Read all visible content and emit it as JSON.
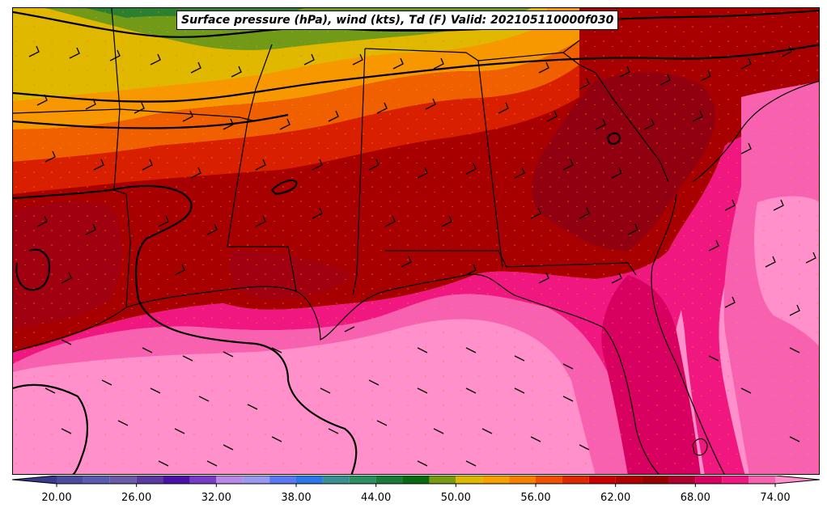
{
  "title": "Surface pressure (hPa), wind (kts), Td (F) Valid: 202105110000f030",
  "colorbar": {
    "levels": [
      18,
      20,
      22,
      24,
      26,
      28,
      30,
      32,
      34,
      36,
      38,
      40,
      42,
      44,
      46,
      48,
      50,
      52,
      54,
      56,
      58,
      60,
      62,
      64,
      66,
      68,
      70,
      72,
      74,
      76
    ],
    "colors": [
      "#3a3a8c",
      "#4b4b9e",
      "#5a5ab0",
      "#6a5aa8",
      "#5a3aa0",
      "#4a10a8",
      "#7a3ac8",
      "#b888e8",
      "#9898f0",
      "#5a78f0",
      "#2a78e8",
      "#3a9090",
      "#2a9060",
      "#1a7a3a",
      "#086a10",
      "#789a10",
      "#e0b800",
      "#f8a000",
      "#f88000",
      "#f05000",
      "#e02800",
      "#c80000",
      "#b00000",
      "#980000",
      "#b00030",
      "#d80060",
      "#f01880",
      "#f860b0",
      "#ff90cc"
    ],
    "tick_labels": [
      "20.00",
      "26.00",
      "32.00",
      "38.00",
      "44.00",
      "50.00",
      "56.00",
      "62.00",
      "68.00",
      "74.00"
    ],
    "tick_values": [
      20,
      26,
      32,
      38,
      44,
      50,
      56,
      62,
      68,
      74
    ]
  }
}
